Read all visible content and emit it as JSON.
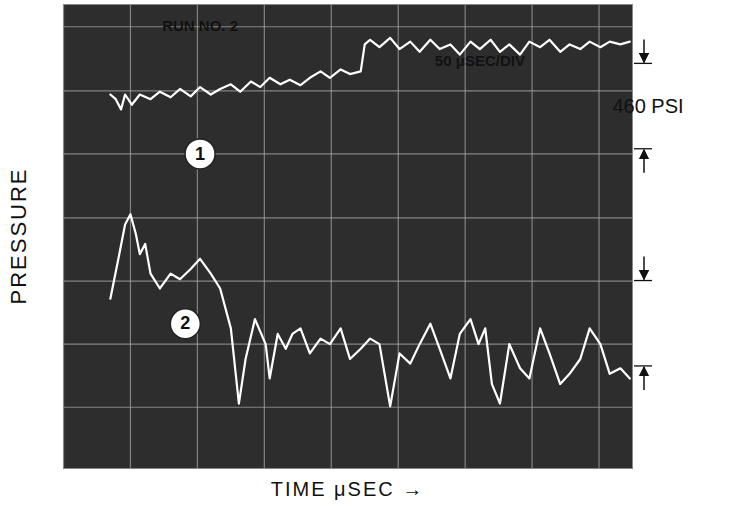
{
  "chart_data": {
    "type": "line",
    "x_label": "TIME μSEC →",
    "y_label": "PRESSURE",
    "xlim": [
      0,
      425
    ],
    "ylim": [
      0,
      2500
    ],
    "xticks": [
      0,
      50,
      100,
      150,
      200,
      250,
      300,
      350,
      400
    ],
    "yticks": [
      330,
      670,
      1010,
      1350,
      1695,
      2035,
      2380
    ],
    "grid": true,
    "tick_labels": false,
    "annotations": [
      {
        "text": "RUN NO. 2",
        "x": 102,
        "y": 2385
      },
      {
        "text": "50 μSEC/DIV",
        "x": 311,
        "y": 2195
      }
    ],
    "scale_bars": [
      {
        "label": "460 PSI",
        "from": 1720,
        "to": 2180
      },
      {
        "from": 550,
        "to": 1010
      }
    ],
    "series": [
      {
        "name": "1",
        "color": "#ffffff",
        "label_at": {
          "x": 102,
          "y": 1695
        },
        "x": [
          35,
          39,
          43,
          46,
          51,
          57,
          65,
          72,
          80,
          87,
          95,
          102,
          110,
          117,
          125,
          132,
          140,
          147,
          154,
          162,
          169,
          177,
          184,
          192,
          199,
          207,
          214,
          222,
          225,
          229,
          236,
          244,
          251,
          259,
          266,
          274,
          281,
          289,
          296,
          304,
          311,
          319,
          326,
          333,
          341,
          348,
          356,
          363,
          371,
          378,
          386,
          393,
          401,
          408,
          416,
          423
        ],
        "values": [
          2015,
          1990,
          1935,
          2015,
          1960,
          2015,
          1990,
          2030,
          2000,
          2045,
          2005,
          2055,
          2015,
          2045,
          2070,
          2030,
          2085,
          2055,
          2105,
          2070,
          2095,
          2065,
          2105,
          2140,
          2105,
          2150,
          2125,
          2140,
          2285,
          2310,
          2270,
          2320,
          2260,
          2300,
          2245,
          2310,
          2260,
          2285,
          2230,
          2300,
          2260,
          2310,
          2245,
          2285,
          2230,
          2300,
          2270,
          2310,
          2245,
          2285,
          2260,
          2300,
          2270,
          2300,
          2285,
          2300
        ]
      },
      {
        "name": "2",
        "color": "#ffffff",
        "label_at": {
          "x": 91,
          "y": 780
        },
        "x": [
          35,
          41,
          46,
          50,
          54,
          57,
          61,
          65,
          72,
          80,
          87,
          95,
          102,
          110,
          117,
          125,
          131,
          136,
          143,
          151,
          154,
          160,
          166,
          171,
          177,
          184,
          192,
          199,
          207,
          214,
          222,
          229,
          236,
          244,
          251,
          259,
          266,
          274,
          281,
          289,
          296,
          304,
          310,
          315,
          320,
          326,
          333,
          341,
          348,
          356,
          363,
          371,
          378,
          386,
          393,
          401,
          408,
          416,
          423
        ],
        "values": [
          915,
          1130,
          1315,
          1370,
          1265,
          1155,
          1210,
          1050,
          970,
          1050,
          1020,
          1075,
          1130,
          1050,
          970,
          755,
          350,
          590,
          805,
          670,
          485,
          725,
          645,
          725,
          755,
          620,
          700,
          670,
          755,
          590,
          645,
          700,
          670,
          335,
          620,
          565,
          670,
          780,
          645,
          485,
          725,
          805,
          670,
          755,
          455,
          350,
          670,
          540,
          485,
          755,
          620,
          455,
          510,
          590,
          755,
          670,
          510,
          540,
          485
        ]
      }
    ]
  }
}
